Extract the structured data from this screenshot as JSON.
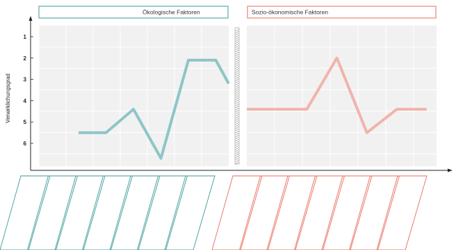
{
  "chart_data": [
    {
      "type": "line",
      "title": "Ökologische Faktoren",
      "ylabel": "Verwirklichungsgrad",
      "yticks": [
        "1",
        "2",
        "3",
        "4",
        "5",
        "6"
      ],
      "ylim_inverted": true,
      "x": [
        1,
        2,
        3,
        4,
        5,
        6,
        7
      ],
      "values": [
        5.5,
        5.5,
        4.4,
        6.7,
        2.1,
        2.1,
        3.2
      ],
      "color": "#8ec5c7",
      "grid": true
    },
    {
      "type": "line",
      "title": "Sozio-ökonomische Faktoren",
      "x": [
        1,
        2,
        3,
        4,
        5,
        6,
        7
      ],
      "values": [
        4.4,
        4.4,
        4.4,
        2.0,
        5.5,
        4.4,
        4.4
      ],
      "color": "#f2b3ab",
      "grid": true
    }
  ],
  "colors": {
    "eco": "#3a9a9a",
    "socio": "#e96a5a",
    "panel": "#f1f1f1",
    "grid": "#ffffff"
  }
}
